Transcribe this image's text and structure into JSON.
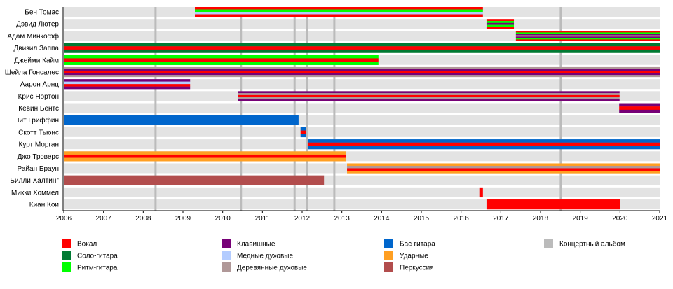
{
  "chart_data": {
    "type": "timeline",
    "title": "",
    "xlim": [
      2006,
      2021
    ],
    "x_ticks": [
      2006,
      2007,
      2008,
      2009,
      2010,
      2011,
      2012,
      2013,
      2014,
      2015,
      2016,
      2017,
      2018,
      2019,
      2020,
      2021
    ],
    "roles": {
      "vocal": {
        "label": "Вокал",
        "color": "#FF0000"
      },
      "lead": {
        "label": "Соло-гитара",
        "color": "#007A33"
      },
      "rhythm": {
        "label": "Ритм-гитара",
        "color": "#00FF00"
      },
      "keys": {
        "label": "Клавишные",
        "color": "#770077"
      },
      "brass": {
        "label": "Медные духовые",
        "color": "#B3CCFF"
      },
      "woodwind": {
        "label": "Деревянные духовые",
        "color": "#B09898"
      },
      "bass": {
        "label": "Бас-гитара",
        "color": "#0066CC"
      },
      "drums": {
        "label": "Ударные",
        "color": "#FF9F22"
      },
      "perc": {
        "label": "Перкуссия",
        "color": "#B24D4D"
      },
      "album": {
        "label": "Концертный альбом",
        "color": "#BBBBBB"
      }
    },
    "legend_order": [
      [
        "vocal",
        "lead",
        "rhythm"
      ],
      [
        "keys",
        "brass",
        "woodwind"
      ],
      [
        "bass",
        "drums",
        "perc"
      ],
      [
        "album"
      ]
    ],
    "albums": [
      2008.31,
      2010.46,
      2011.81,
      2012.12,
      2012.81,
      2018.51
    ],
    "members": [
      {
        "name": "Бен Томас",
        "start": 2009.3,
        "end": 2016.55,
        "layers": [
          "vocal",
          "rhythm",
          "brass",
          "vocal"
        ]
      },
      {
        "name": "Дэвид Лютер",
        "start": 2016.64,
        "end": 2017.33,
        "layers": [
          "vocal",
          "rhythm",
          "keys",
          "rhythm",
          "vocal"
        ]
      },
      {
        "name": "Адам Минкофф",
        "start": 2017.38,
        "end": 2021,
        "layers": [
          "vocal",
          "rhythm",
          "keys",
          "woodwind",
          "keys",
          "rhythm",
          "vocal"
        ]
      },
      {
        "name": "Двизил Заппа",
        "start": 2006,
        "end": 2021,
        "layers": [
          "lead",
          "vocal",
          "lead"
        ]
      },
      {
        "name": "Джейми Кайм",
        "start": 2006,
        "end": 2013.92,
        "layers": [
          "rhythm",
          "vocal",
          "rhythm"
        ]
      },
      {
        "name": "Шейла Гонсалес",
        "start": 2006,
        "end": 2021,
        "layers": [
          "woodwind",
          "keys",
          "vocal",
          "keys",
          "woodwind"
        ]
      },
      {
        "name": "Аарон Арнц",
        "start": 2006,
        "end": 2009.18,
        "layers": [
          "keys",
          "brass",
          "vocal",
          "keys"
        ]
      },
      {
        "name": "Крис Нортон",
        "start": 2010.39,
        "end": 2019.99,
        "layers": [
          "keys",
          "woodwind",
          "vocal",
          "woodwind",
          "keys"
        ]
      },
      {
        "name": "Кевин Бентс",
        "start": 2019.98,
        "end": 2021,
        "layers": [
          "keys",
          "vocal",
          "keys"
        ]
      },
      {
        "name": "Пит Гриффин",
        "start": 2006,
        "end": 2011.91,
        "layers": [
          "bass"
        ]
      },
      {
        "name": "Скотт Тьюнс",
        "start": 2011.96,
        "end": 2012.1,
        "layers": [
          "bass",
          "vocal",
          "bass"
        ]
      },
      {
        "name": "Курт Морган",
        "start": 2012.14,
        "end": 2021,
        "layers": [
          "bass",
          "vocal",
          "bass"
        ]
      },
      {
        "name": "Джо Трэверс",
        "start": 2006,
        "end": 2013.1,
        "layers": [
          "drums",
          "vocal",
          "drums"
        ]
      },
      {
        "name": "Райан Браун",
        "start": 2013.13,
        "end": 2021,
        "layers": [
          "drums",
          "woodwind",
          "vocal",
          "drums"
        ]
      },
      {
        "name": "Билли Халтинг",
        "start": 2006,
        "end": 2012.55,
        "layers": [
          "perc"
        ]
      },
      {
        "name": "Микки Хоммел",
        "start": 2016.46,
        "end": 2016.55,
        "layers": [
          "vocal"
        ]
      },
      {
        "name": "Киан Кои",
        "start": 2016.64,
        "end": 2020.0,
        "layers": [
          "vocal"
        ]
      }
    ]
  }
}
